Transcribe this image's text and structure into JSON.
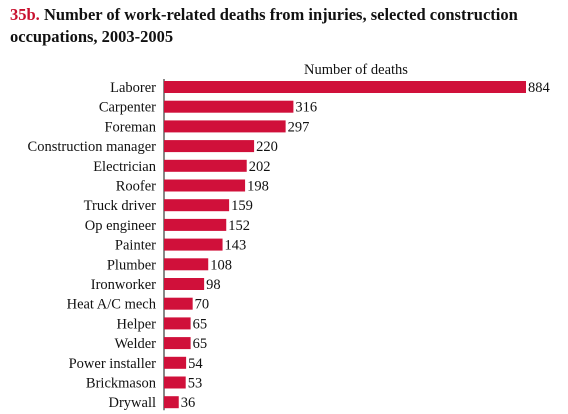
{
  "figure": {
    "number": "35b.",
    "title": "Number of work-related deaths from injuries, selected construction occupations, 2003-2005"
  },
  "chart_data": {
    "type": "bar",
    "orientation": "horizontal",
    "title": "Number of work-related deaths from injuries, selected construction occupations, 2003-2005",
    "axis_title": "Number of deaths",
    "bar_color": "#d0103a",
    "xlim": [
      0,
      884
    ],
    "grid": false,
    "legend": "none",
    "categories": [
      "Laborer",
      "Carpenter",
      "Foreman",
      "Construction manager",
      "Electrician",
      "Roofer",
      "Truck driver",
      "Op engineer",
      "Painter",
      "Plumber",
      "Ironworker",
      "Heat A/C mech",
      "Helper",
      "Welder",
      "Power installer",
      "Brickmason",
      "Drywall"
    ],
    "values": [
      884,
      316,
      297,
      220,
      202,
      198,
      159,
      152,
      143,
      108,
      98,
      70,
      65,
      65,
      54,
      53,
      36
    ]
  }
}
